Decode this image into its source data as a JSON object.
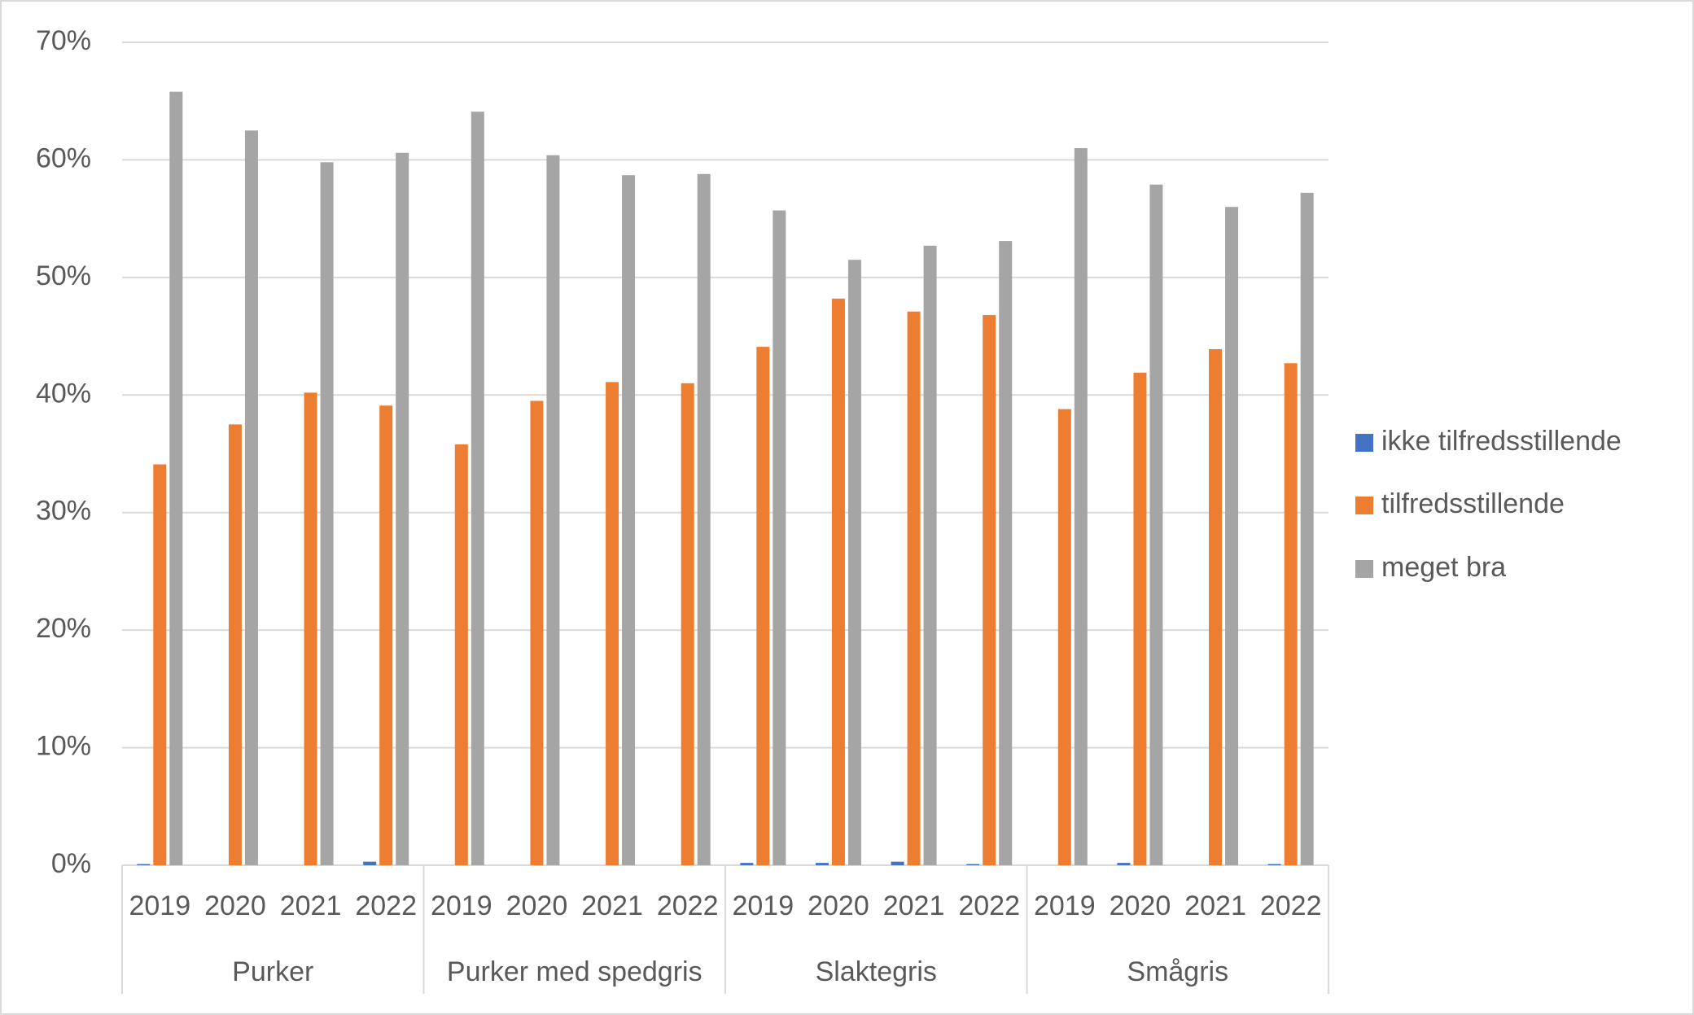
{
  "chart_data": {
    "type": "bar",
    "categories": [
      "2019",
      "2020",
      "2021",
      "2022",
      "2019",
      "2020",
      "2021",
      "2022",
      "2019",
      "2020",
      "2021",
      "2022",
      "2019",
      "2020",
      "2021",
      "2022"
    ],
    "groups": [
      "Purker",
      "Purker med spedgris",
      "Slaktegris",
      "Smågris"
    ],
    "series": [
      {
        "name": "ikke tilfredsstillende",
        "color": "#4472c4",
        "values": [
          0.1,
          0,
          0,
          0.3,
          0,
          0,
          0,
          0,
          0.2,
          0.2,
          0.3,
          0.1,
          0,
          0.2,
          0,
          0.1
        ]
      },
      {
        "name": "tilfredsstillende",
        "color": "#ed7d31",
        "values": [
          34.1,
          37.5,
          40.2,
          39.1,
          35.8,
          39.5,
          41.1,
          41.0,
          44.1,
          48.2,
          47.1,
          46.8,
          38.8,
          41.9,
          43.9,
          42.7
        ]
      },
      {
        "name": "meget bra",
        "color": "#a5a5a5",
        "values": [
          65.8,
          62.5,
          59.8,
          60.6,
          64.1,
          60.4,
          58.7,
          58.8,
          55.7,
          51.5,
          52.7,
          53.1,
          61.0,
          57.9,
          56.0,
          57.2
        ]
      }
    ],
    "ylim": [
      0,
      70
    ],
    "yticks": [
      {
        "value": 0,
        "label": "0%"
      },
      {
        "value": 10,
        "label": "10%"
      },
      {
        "value": 20,
        "label": "20%"
      },
      {
        "value": 30,
        "label": "30%"
      },
      {
        "value": 40,
        "label": "40%"
      },
      {
        "value": 50,
        "label": "50%"
      },
      {
        "value": 60,
        "label": "60%"
      },
      {
        "value": 70,
        "label": "70%"
      }
    ],
    "grid": true,
    "legend": "right"
  }
}
